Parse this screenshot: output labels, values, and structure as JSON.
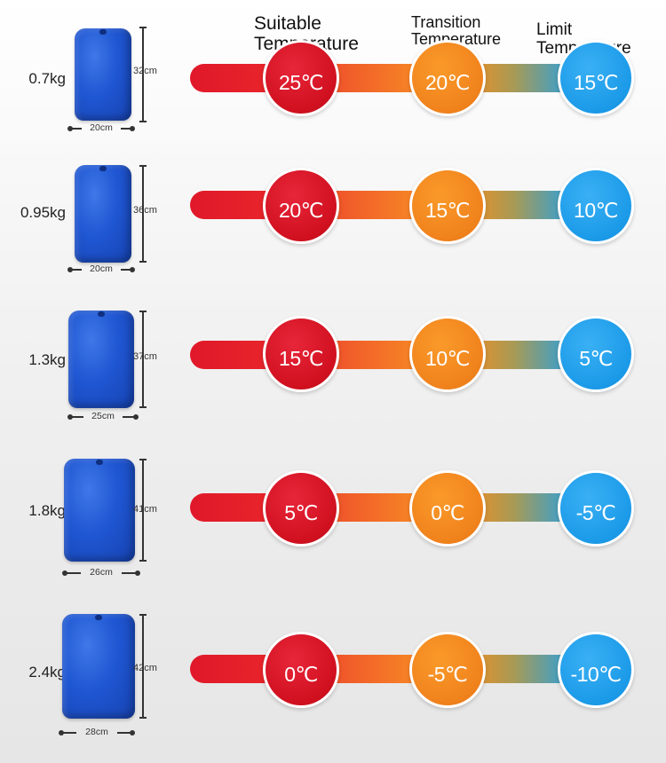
{
  "headers": {
    "suitable": [
      "Suitable",
      "Temperature"
    ],
    "transition": [
      "Transition",
      "Temperature"
    ],
    "limit": [
      "Limit",
      "Temperature"
    ]
  },
  "rows": [
    {
      "weight": "0.7kg",
      "height": "32cm",
      "width": "20cm",
      "suitable": "25℃",
      "transition": "20℃",
      "limit": "15℃"
    },
    {
      "weight": "0.95kg",
      "height": "36cm",
      "width": "20cm",
      "suitable": "20℃",
      "transition": "15℃",
      "limit": "10℃"
    },
    {
      "weight": "1.3kg",
      "height": "37cm",
      "width": "25cm",
      "suitable": "15℃",
      "transition": "10℃",
      "limit": "5℃"
    },
    {
      "weight": "1.8kg",
      "height": "41cm",
      "width": "26cm",
      "suitable": "5℃",
      "transition": "0℃",
      "limit": "-5℃"
    },
    {
      "weight": "2.4kg",
      "height": "42cm",
      "width": "28cm",
      "suitable": "0℃",
      "transition": "-5℃",
      "limit": "-10℃"
    }
  ]
}
